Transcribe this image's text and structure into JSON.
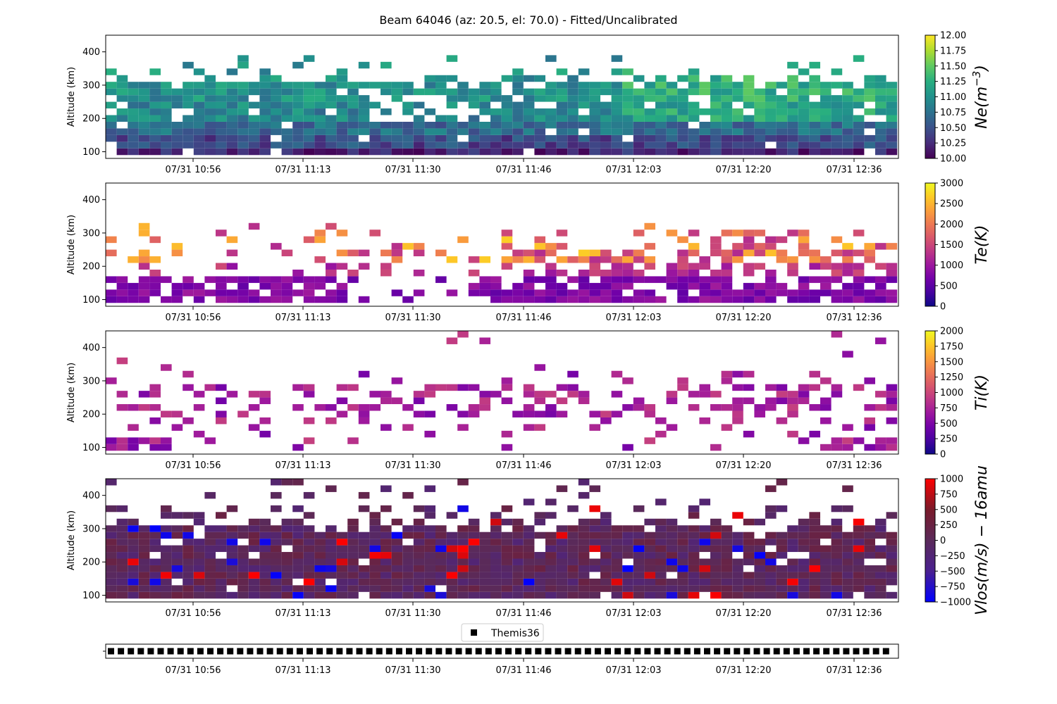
{
  "figure": {
    "title": "Beam 64046 (az: 20.5, el: 70.0) - Fitted/Uncalibrated"
  },
  "chart_data": [
    {
      "type": "heatmap",
      "id": "ne",
      "ylabel": "Altitude (km)",
      "ylim": [
        80,
        450
      ],
      "yticks": [
        100,
        200,
        300,
        400
      ],
      "x_tick_labels": [
        "07/31 10:56",
        "07/31 11:13",
        "07/31 11:30",
        "07/31 11:46",
        "07/31 12:03",
        "07/31 12:20",
        "07/31 12:36"
      ],
      "colorbar": {
        "label": "Ne(m⁻³)",
        "label_base": "Ne(m",
        "label_exp": "−3",
        "label_close": ")",
        "colormap": "viridis",
        "range": [
          10.0,
          12.0
        ],
        "ticks": [
          "10.00",
          "10.25",
          "10.50",
          "10.75",
          "11.00",
          "11.25",
          "11.50",
          "11.75",
          "12.00"
        ]
      },
      "gates_km": [
        100,
        120,
        140,
        160,
        180,
        200,
        220,
        240,
        260,
        280,
        300,
        320,
        340,
        360
      ],
      "approx_values": "log10 density mostly 10.2-11.2, higher (up to ~11.6) at 220-300 km after ~12:03"
    },
    {
      "type": "heatmap",
      "id": "te",
      "ylabel": "Altitude (km)",
      "ylim": [
        80,
        450
      ],
      "yticks": [
        100,
        200,
        300,
        400
      ],
      "x_tick_labels": [
        "07/31 10:56",
        "07/31 11:13",
        "07/31 11:30",
        "07/31 11:46",
        "07/31 12:03",
        "07/31 12:20",
        "07/31 12:36"
      ],
      "colorbar": {
        "label": "Te(K)",
        "colormap": "plasma",
        "range": [
          0,
          3000
        ],
        "ticks": [
          "0",
          "500",
          "1000",
          "1500",
          "2000",
          "2500",
          "3000"
        ]
      },
      "approx_values": "~500-900 K below 160 km, ~1500-2500 K at 200-300 km"
    },
    {
      "type": "heatmap",
      "id": "ti",
      "ylabel": "Altitude (km)",
      "ylim": [
        80,
        450
      ],
      "yticks": [
        100,
        200,
        300,
        400
      ],
      "x_tick_labels": [
        "07/31 10:56",
        "07/31 11:13",
        "07/31 11:30",
        "07/31 11:46",
        "07/31 12:03",
        "07/31 12:20",
        "07/31 12:36"
      ],
      "colorbar": {
        "label": "Ti(K)",
        "colormap": "plasma",
        "range": [
          0,
          2000
        ],
        "ticks": [
          "0",
          "250",
          "500",
          "750",
          "1000",
          "1250",
          "1500",
          "1750",
          "2000"
        ]
      },
      "approx_values": "mostly ~500-900 K, sparse coverage"
    },
    {
      "type": "heatmap",
      "id": "vlos",
      "ylabel": "Altitude (km)",
      "ylim": [
        80,
        450
      ],
      "yticks": [
        100,
        200,
        300,
        400
      ],
      "x_tick_labels": [
        "07/31 10:56",
        "07/31 11:13",
        "07/31 11:30",
        "07/31 11:46",
        "07/31 12:03",
        "07/31 12:20",
        "07/31 12:36"
      ],
      "colorbar": {
        "label": "Vlos(m/s) − 16amu",
        "colormap": "bwr",
        "range": [
          -1000,
          1000
        ],
        "ticks": [
          "1000",
          "750",
          "500",
          "250",
          "0",
          "−250",
          "−500",
          "−750",
          "−1000"
        ]
      },
      "approx_values": "mostly −250 to +250 m/s, scattered extremes near ±1000 m/s"
    },
    {
      "type": "scatter",
      "id": "themis",
      "legend": [
        "Themis36"
      ],
      "marker": "square",
      "color": "#000000",
      "x_tick_labels": [
        "07/31 10:56",
        "07/31 11:13",
        "07/31 11:30",
        "07/31 11:46",
        "07/31 12:03",
        "07/31 12:20",
        "07/31 12:36"
      ],
      "count": 80
    }
  ]
}
